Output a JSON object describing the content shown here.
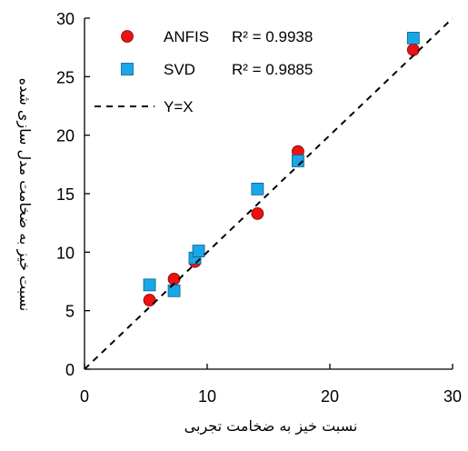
{
  "chart_data": {
    "type": "scatter",
    "xlabel": "نسبت خیز به ضخامت تجربی",
    "ylabel": "نسبت خیز به ضخامت مدل سازی شده",
    "xlim": [
      0,
      30
    ],
    "ylim": [
      0,
      30
    ],
    "xticks": [
      "0",
      "10",
      "20",
      "30"
    ],
    "yticks": [
      "0",
      "5",
      "10",
      "15",
      "20",
      "25",
      "30"
    ],
    "grid": false,
    "legend_position": "top-left",
    "series": [
      {
        "name": "ANFIS",
        "r2": "R² = 0.9938",
        "marker": "circle",
        "color": "#ee1111",
        "points": [
          [
            5.3,
            5.9
          ],
          [
            7.3,
            7.7
          ],
          [
            9.0,
            9.2
          ],
          [
            14.1,
            13.3
          ],
          [
            17.4,
            18.6
          ],
          [
            26.8,
            27.3
          ]
        ]
      },
      {
        "name": "SVD",
        "r2": "R² = 0.9885",
        "marker": "square",
        "color": "#1aa7e8",
        "points": [
          [
            5.3,
            7.2
          ],
          [
            7.3,
            6.7
          ],
          [
            9.0,
            9.5
          ],
          [
            9.3,
            10.1
          ],
          [
            14.1,
            15.4
          ],
          [
            17.4,
            17.8
          ],
          [
            26.8,
            28.3
          ]
        ]
      },
      {
        "name": "Y=X",
        "marker": "dashed-line",
        "color": "#000000",
        "points": [
          [
            0,
            0
          ],
          [
            30,
            30
          ]
        ]
      }
    ]
  }
}
